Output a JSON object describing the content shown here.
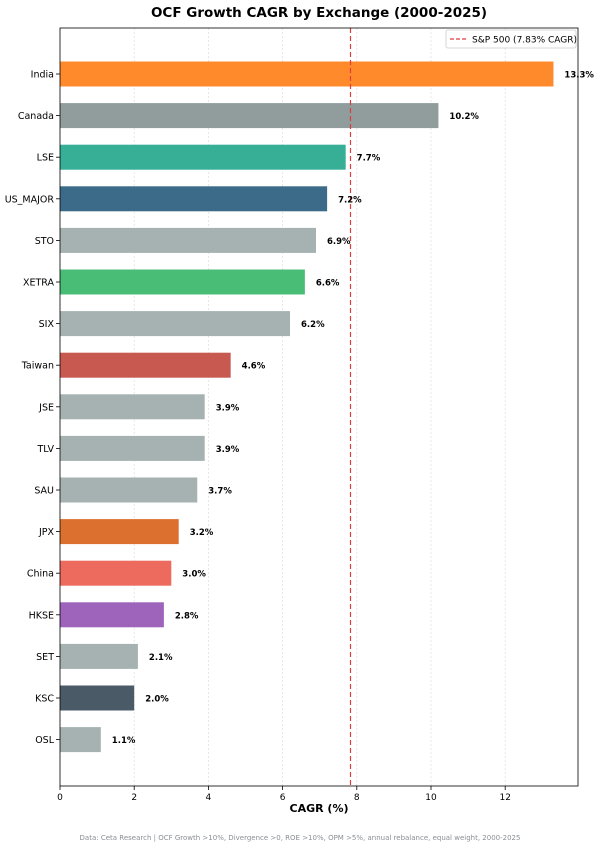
{
  "chart_data": {
    "type": "bar",
    "orientation": "horizontal",
    "title": "OCF Growth CAGR by Exchange (2000-2025)",
    "xlabel": "CAGR (%)",
    "ylabel": "",
    "xlim": [
      0,
      14
    ],
    "xticks": [
      0,
      2,
      4,
      6,
      8,
      10,
      12
    ],
    "grid": "vertical-dotted",
    "legend_position": "top-right",
    "categories": [
      "India",
      "Canada",
      "LSE",
      "US_MAJOR",
      "STO",
      "XETRA",
      "SIX",
      "Taiwan",
      "JSE",
      "TLV",
      "SAU",
      "JPX",
      "China",
      "HKSE",
      "SET",
      "KSC",
      "OSL"
    ],
    "values": [
      13.3,
      10.2,
      7.7,
      7.2,
      6.9,
      6.6,
      6.2,
      4.6,
      3.9,
      3.9,
      3.7,
      3.2,
      3.0,
      2.8,
      2.1,
      2.0,
      1.1
    ],
    "value_labels": [
      "13.3%",
      "10.2%",
      "7.7%",
      "7.2%",
      "6.9%",
      "6.6%",
      "6.2%",
      "4.6%",
      "3.9%",
      "3.9%",
      "3.7%",
      "3.2%",
      "3.0%",
      "2.8%",
      "2.1%",
      "2.0%",
      "1.1%"
    ],
    "colors": [
      "#fe8a2b",
      "#909d9c",
      "#37ae96",
      "#3c6a89",
      "#a6b2b2",
      "#49bc75",
      "#a6b2b2",
      "#c85950",
      "#a6b2b2",
      "#a6b2b2",
      "#a6b2b2",
      "#dc712f",
      "#ec6a5e",
      "#9e64bb",
      "#a6b2b2",
      "#4b5a67",
      "#a6b2b2"
    ],
    "reference_line": {
      "value": 7.83,
      "label": "S&P 500 (7.83% CAGR)",
      "color": "#e03c3c"
    },
    "footnote": "Data: Ceta Research | OCF Growth >10%, Divergence >0, ROE >10%, OPM >5%, annual rebalance, equal weight, 2000-2025"
  }
}
